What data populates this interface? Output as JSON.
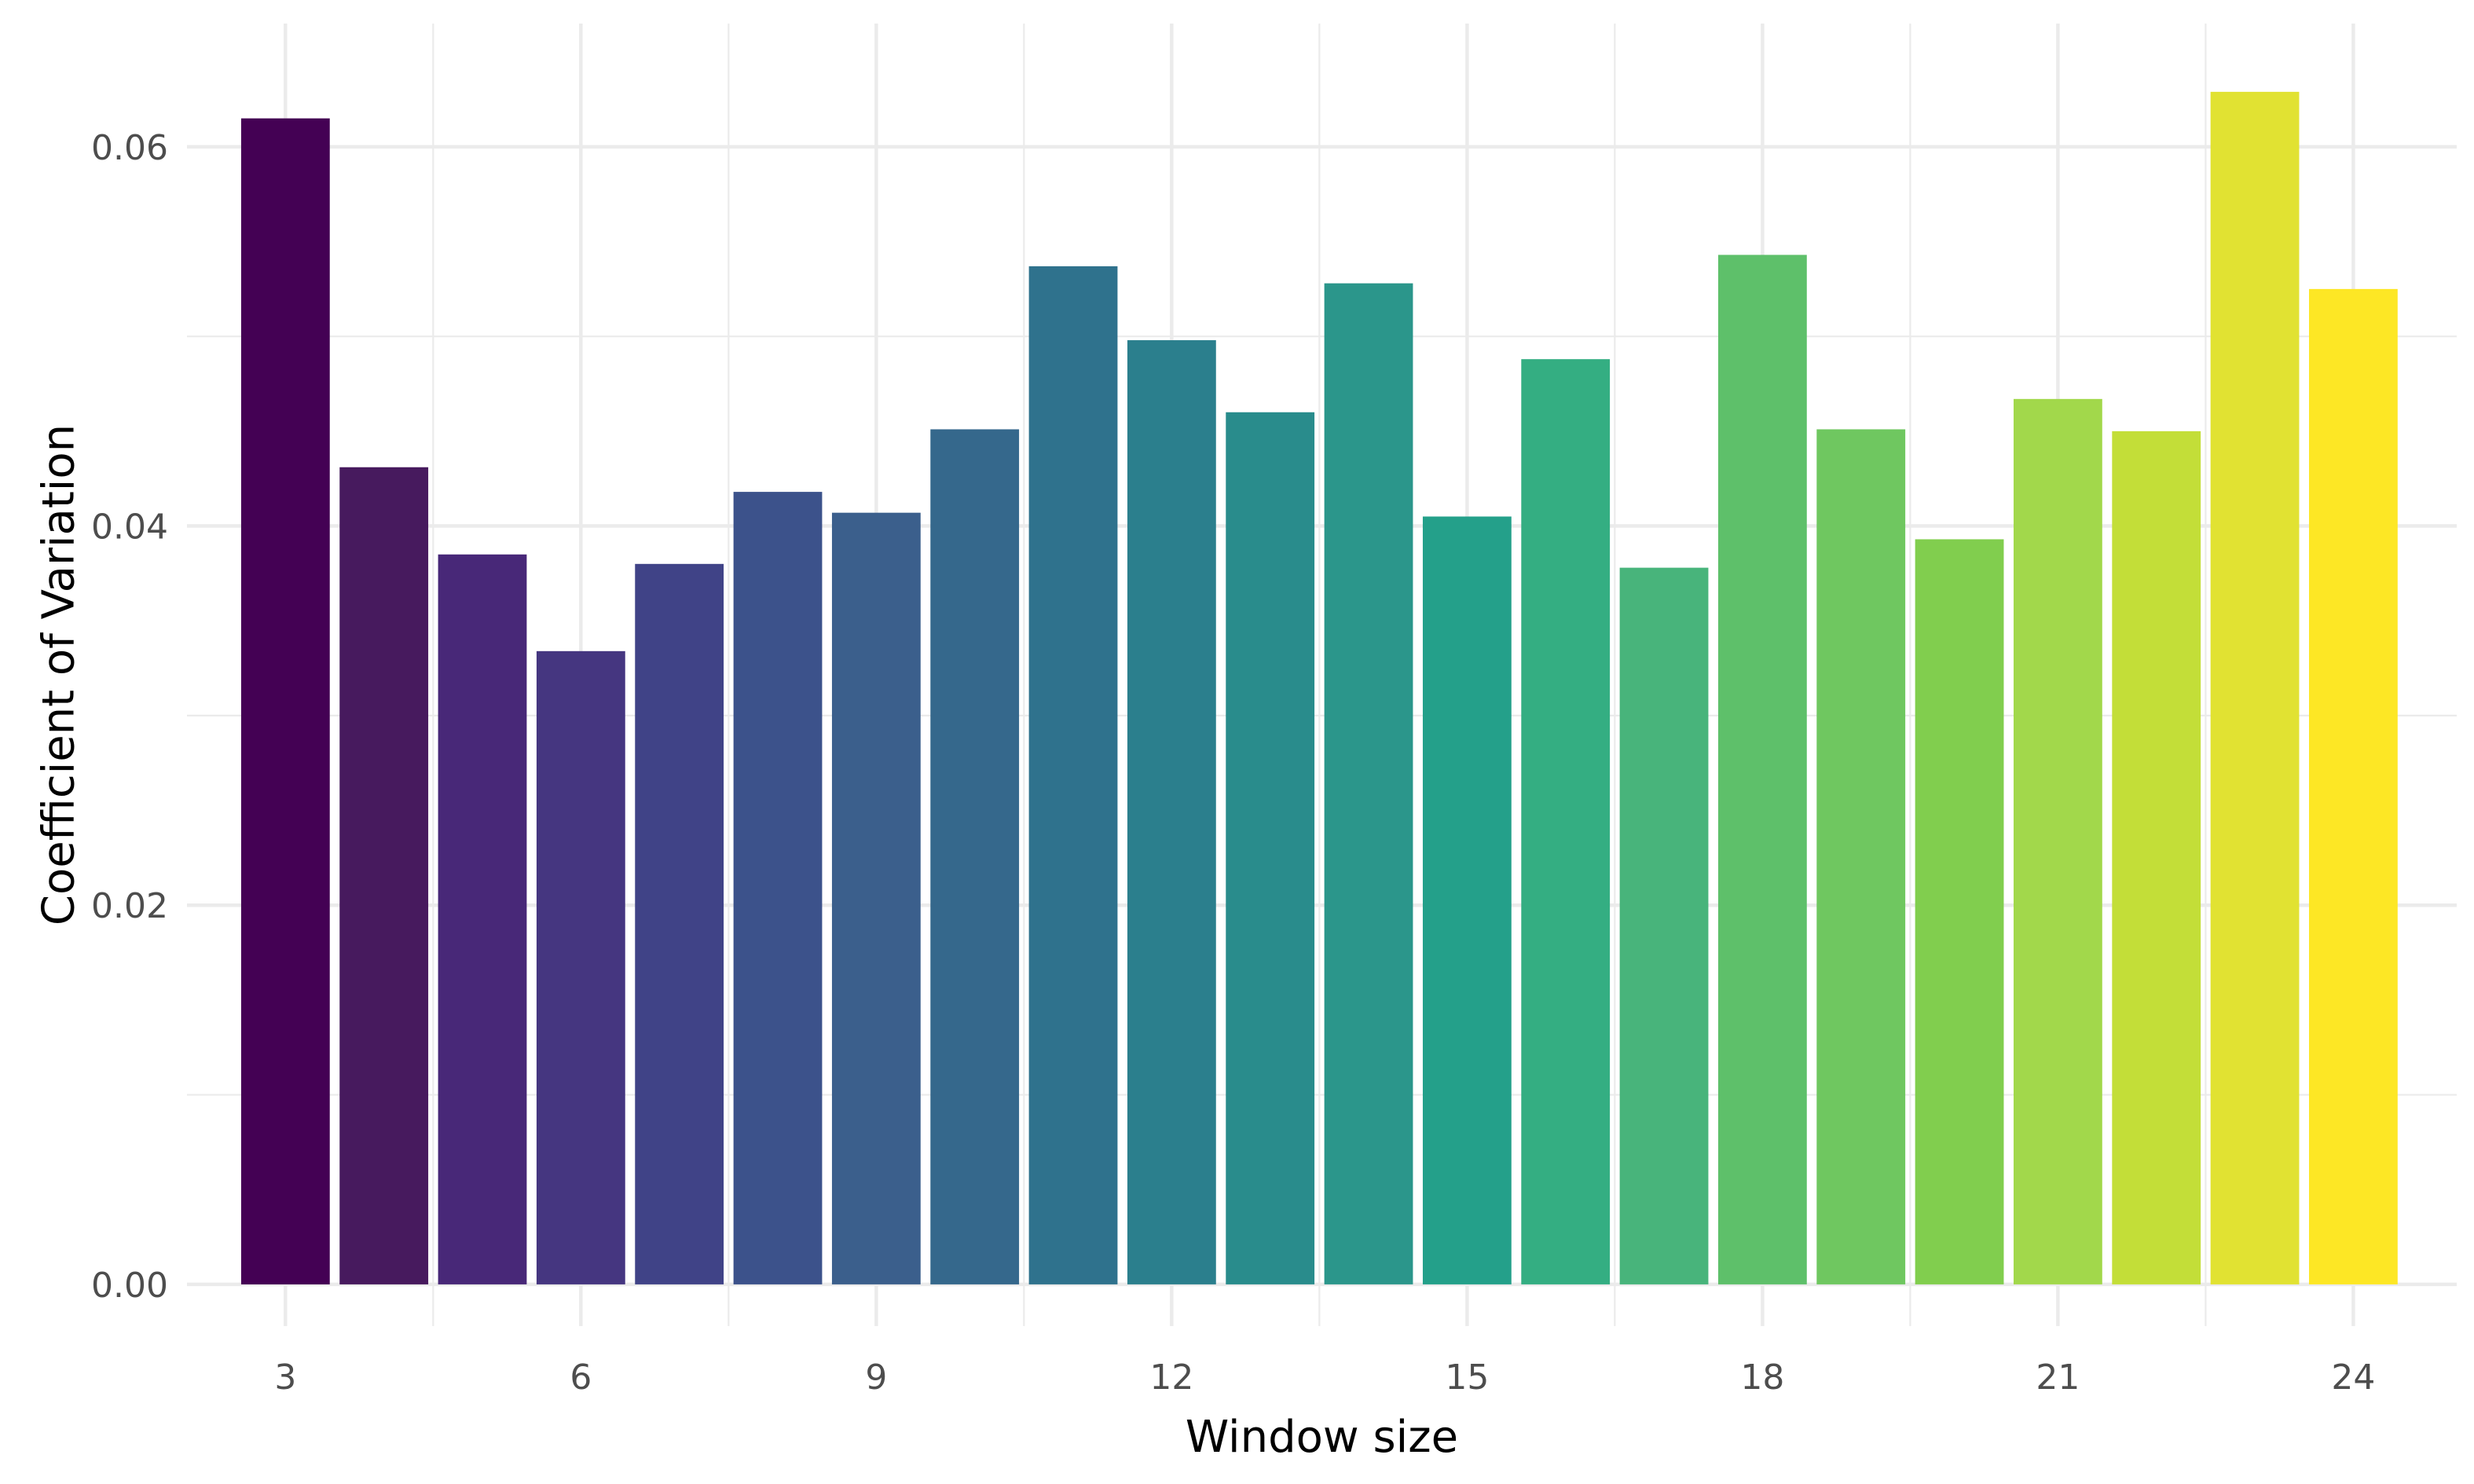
{
  "chart_data": {
    "type": "bar",
    "x": [
      3,
      4,
      5,
      6,
      7,
      8,
      9,
      10,
      11,
      12,
      13,
      14,
      15,
      16,
      17,
      18,
      19,
      20,
      21,
      22,
      23,
      24
    ],
    "values": [
      0.0615,
      0.0431,
      0.0385,
      0.0334,
      0.038,
      0.0418,
      0.0407,
      0.0451,
      0.0537,
      0.0498,
      0.046,
      0.0528,
      0.0405,
      0.0488,
      0.0378,
      0.0543,
      0.0451,
      0.0393,
      0.0467,
      0.045,
      0.0629,
      0.0525
    ],
    "colors": [
      "#440154",
      "#471A5E",
      "#482878",
      "#453680",
      "#404387",
      "#3C528B",
      "#3B5F8C",
      "#35688C",
      "#2F728D",
      "#2B7F8D",
      "#298C8C",
      "#2B968B",
      "#24A08A",
      "#34AE82",
      "#48B47B",
      "#5EC06A",
      "#6FC760",
      "#81CE4E",
      "#A2D84B",
      "#C3DE38",
      "#E1E232",
      "#FDE725"
    ],
    "xlabel": "Window size",
    "ylabel": "Coefficient of Variation",
    "xticks": [
      3,
      6,
      9,
      12,
      15,
      18,
      21,
      24
    ],
    "xtick_labels": [
      "3",
      "6",
      "9",
      "12",
      "15",
      "18",
      "21",
      "24"
    ],
    "yticks": [
      0,
      0.02,
      0.04,
      0.06
    ],
    "ytick_labels": [
      "0.00",
      "0.02",
      "0.04",
      "0.06"
    ],
    "ylim": [
      -0.0022,
      0.0665
    ],
    "xlim": [
      2.0,
      25.05
    ],
    "grid": true,
    "legend": "none"
  }
}
